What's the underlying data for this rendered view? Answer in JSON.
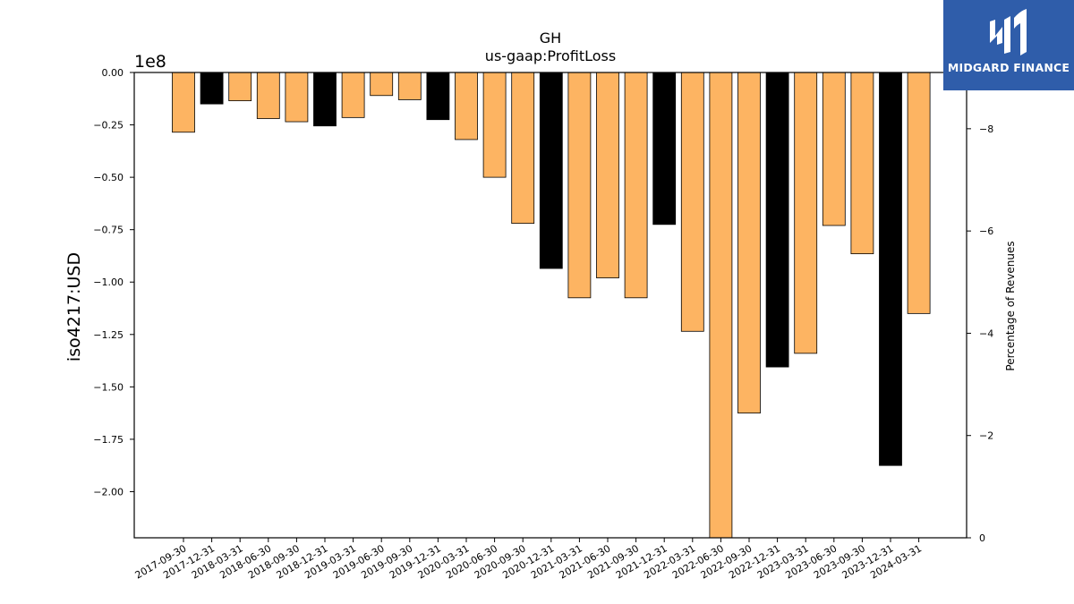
{
  "chart_data": {
    "type": "bar",
    "title": "GH",
    "subtitle": "us-gaap:ProfitLoss",
    "ylabel": "iso4217:USD",
    "y_offset_text": "1e8",
    "y2label": "Percentage of Revenues",
    "ylim": [
      -2.22,
      0
    ],
    "y_ticks": [
      "0.00",
      "−0.25",
      "−0.50",
      "−0.75",
      "−1.00",
      "−1.25",
      "−1.50",
      "−1.75",
      "−2.00"
    ],
    "y_tick_values": [
      0,
      -0.25,
      -0.5,
      -0.75,
      -1.0,
      -1.25,
      -1.5,
      -1.75,
      -2.0
    ],
    "y2lim": [
      0,
      -9.1
    ],
    "y2_ticks": [
      "0",
      "−2",
      "−4",
      "−6",
      "−8"
    ],
    "y2_tick_values": [
      0,
      -2,
      -4,
      -6,
      -8
    ],
    "grid": false,
    "colors": {
      "quarter": "#FDB462",
      "annual": "#000000",
      "edge": "#000000"
    },
    "categories": [
      "2017-09-30",
      "2017-12-31",
      "2018-03-31",
      "2018-06-30",
      "2018-09-30",
      "2018-12-31",
      "2019-03-31",
      "2019-06-30",
      "2019-09-30",
      "2019-12-31",
      "2020-03-31",
      "2020-06-30",
      "2020-09-30",
      "2020-12-31",
      "2021-03-31",
      "2021-06-30",
      "2021-09-30",
      "2021-12-31",
      "2022-03-31",
      "2022-06-30",
      "2022-09-30",
      "2022-12-31",
      "2023-03-31",
      "2023-06-30",
      "2023-09-30",
      "2023-12-31",
      "2024-03-31"
    ],
    "values": [
      -0.285,
      -0.15,
      -0.135,
      -0.22,
      -0.235,
      -0.255,
      -0.215,
      -0.11,
      -0.13,
      -0.225,
      -0.32,
      -0.5,
      -0.72,
      -0.935,
      -1.075,
      -0.98,
      -1.075,
      -0.725,
      -1.235,
      -2.22,
      -1.625,
      -1.405,
      -1.34,
      -0.73,
      -0.865,
      -1.875,
      -1.15
    ],
    "is_annual": [
      false,
      true,
      false,
      false,
      false,
      true,
      false,
      false,
      false,
      true,
      false,
      false,
      false,
      true,
      false,
      false,
      false,
      true,
      false,
      false,
      false,
      true,
      false,
      false,
      false,
      true,
      false
    ]
  },
  "logo": {
    "text": "MIDGARD FINANCE",
    "icon": "midgard-m-logo-icon",
    "color": "#2F5DAA"
  }
}
